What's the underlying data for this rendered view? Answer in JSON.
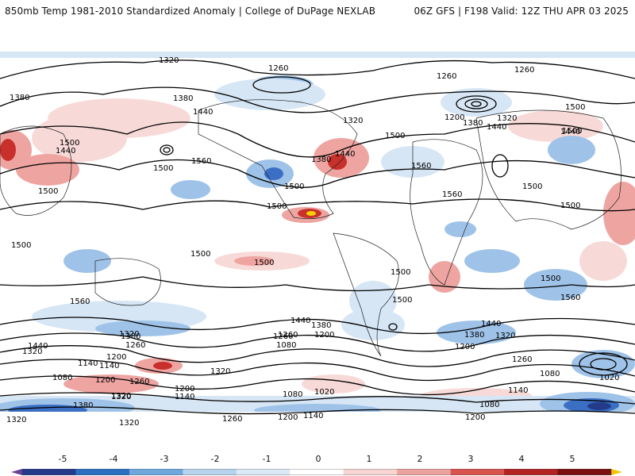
{
  "header": {
    "left_title": "850mb Temp 1981-2010 Standardized Anomaly | College of DuPage NEXLAB",
    "right_title": "06Z GFS | F198 Valid: 12Z THU APR 03 2025"
  },
  "contour_labels": [
    "1320",
    "1260",
    "1260",
    "1260",
    "1380",
    "1380",
    "1320",
    "1380",
    "1440",
    "1440",
    "1500",
    "1440",
    "1500",
    "1560",
    "1500",
    "1500",
    "1500",
    "1320",
    "1200",
    "1380",
    "1440",
    "1440",
    "1560",
    "1560",
    "1500",
    "1500",
    "1500",
    "1500",
    "1500",
    "1500",
    "1500",
    "1500",
    "1500",
    "1500",
    "1500",
    "1560",
    "1560",
    "1440",
    "1380",
    "1440",
    "1380",
    "1320",
    "1260",
    "1200",
    "1320",
    "1320",
    "1260",
    "1200",
    "1260",
    "1080",
    "1200",
    "1140",
    "1320",
    "1440",
    "1380",
    "1320",
    "1080",
    "1020",
    "1260",
    "1080",
    "1200",
    "1320",
    "1140",
    "1200",
    "1260",
    "1020",
    "1140",
    "1080",
    "1140",
    "1080",
    "1200",
    "1140",
    "1260",
    "1200",
    "1380",
    "1320",
    "1320"
  ],
  "colorbar": {
    "ticks": [
      "-5",
      "-4",
      "-3",
      "-2",
      "-1",
      "0",
      "1",
      "2",
      "3",
      "4",
      "5"
    ],
    "colors": [
      "#6a3d9a",
      "#243b8c",
      "#2c6fc0",
      "#6fa8dc",
      "#b7d3ee",
      "#dbe8f5",
      "#ffffff",
      "#f6d5d2",
      "#eba3a0",
      "#d9534f",
      "#b22222",
      "#7a0f0f",
      "#f5c400"
    ]
  },
  "legend": {
    "colors": {
      "strong_cold": "#3a6fc4",
      "cold": "#9fc3e8",
      "weak_cold": "#d6e6f5",
      "weak_warm": "#f7dad8",
      "warm": "#eea5a2",
      "strong_warm": "#c8302c",
      "extreme_warm": "#f5d000",
      "land_outline": "#222222",
      "contour": "#000000"
    }
  }
}
